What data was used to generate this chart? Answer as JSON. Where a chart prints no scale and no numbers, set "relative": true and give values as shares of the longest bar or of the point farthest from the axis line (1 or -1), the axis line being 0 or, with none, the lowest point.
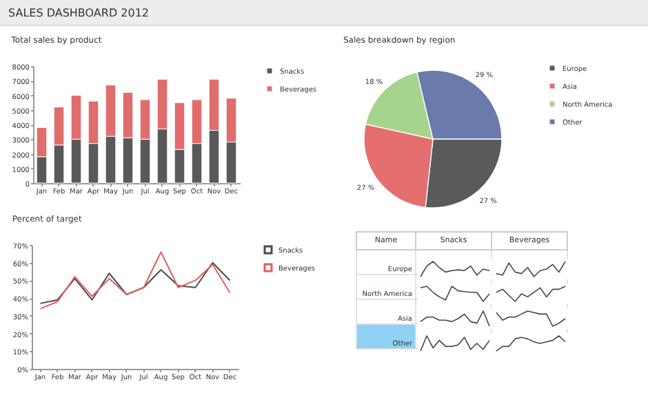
{
  "chart_data": [
    {
      "type": "other",
      "title": "SALES DASHBOARD 2012"
    },
    {
      "type": "bar",
      "title": "Total sales by product",
      "stacked": true,
      "categories": [
        "Jan",
        "Feb",
        "Mar",
        "Apr",
        "May",
        "Jun",
        "Jul",
        "Aug",
        "Sep",
        "Oct",
        "Nov",
        "Dec"
      ],
      "series": [
        {
          "name": "Snacks",
          "color": "#595959",
          "values": [
            1800,
            2600,
            3000,
            2700,
            3200,
            3100,
            3000,
            3700,
            2300,
            2700,
            3600,
            2800
          ]
        },
        {
          "name": "Beverages",
          "color": "#e06c6c",
          "values": [
            2000,
            2600,
            3000,
            2900,
            3500,
            3100,
            2700,
            3400,
            3200,
            3000,
            3500,
            3000
          ]
        }
      ],
      "ylim": [
        0,
        8000
      ],
      "yticks": [
        0,
        1000,
        2000,
        3000,
        4000,
        5000,
        6000,
        7000,
        8000
      ],
      "grid": false,
      "legend": "right"
    },
    {
      "type": "pie",
      "title": "Sales breakdown by region",
      "categories": [
        "Europe",
        "Asia",
        "North America",
        "Other"
      ],
      "values": [
        27,
        27,
        18,
        29
      ],
      "colors": [
        "#5a5a5a",
        "#e56e6e",
        "#a6d48c",
        "#6b7aac"
      ],
      "value_labels": [
        "27 %",
        "27 %",
        "18 %",
        "29 %"
      ],
      "legend": "right"
    },
    {
      "type": "line",
      "title": "Percent of target",
      "categories": [
        "Jan",
        "Feb",
        "Mar",
        "Apr",
        "May",
        "Jun",
        "Jul",
        "Aug",
        "Sep",
        "Oct",
        "Nov",
        "Dec"
      ],
      "series": [
        {
          "name": "Snacks",
          "color": "#4a4a4a",
          "values": [
            37,
            39,
            51,
            39,
            54,
            42,
            46,
            56,
            47,
            46,
            60,
            50
          ]
        },
        {
          "name": "Beverages",
          "color": "#e85c5c",
          "values": [
            34,
            38,
            52,
            41,
            51,
            42,
            46,
            66,
            46,
            50,
            59,
            43
          ]
        }
      ],
      "ylim": [
        0,
        70
      ],
      "yticks": [
        {
          "value": 0,
          "label": "0%"
        },
        {
          "value": 10,
          "label": "10%"
        },
        {
          "value": 20,
          "label": "20%"
        },
        {
          "value": 30,
          "label": "30%"
        },
        {
          "value": 40,
          "label": "40%"
        },
        {
          "value": 50,
          "label": "50%"
        },
        {
          "value": 60,
          "label": "60%"
        },
        {
          "value": 70,
          "label": "70%"
        }
      ],
      "grid": false,
      "legend": "right",
      "marker": "none"
    },
    {
      "type": "other",
      "annotations": [
        "Name",
        "Snacks",
        "Beverages",
        "Europe",
        "North America",
        "Asia",
        "Other"
      ]
    },
    {
      "type": "line",
      "relative": true,
      "categories": [
        null,
        null,
        null,
        null,
        null,
        null,
        null,
        null,
        null,
        null,
        null,
        null
      ],
      "color": "#444444",
      "values": [
        0,
        0.7,
        1,
        0.6,
        0.3,
        0.4,
        0.45,
        0.4,
        0.7,
        0.1,
        0.5,
        0.4
      ]
    },
    {
      "type": "line",
      "relative": true,
      "categories": [
        null,
        null,
        null,
        null,
        null,
        null,
        null,
        null,
        null,
        null,
        null,
        null
      ],
      "color": "#444444",
      "values": [
        0.2,
        0.1,
        0.9,
        0.3,
        0.2,
        0.6,
        0,
        0.4,
        0.5,
        0.8,
        0.3,
        1
      ]
    },
    {
      "type": "line",
      "relative": true,
      "categories": [
        null,
        null,
        null,
        null,
        null,
        null,
        null,
        null,
        null,
        null,
        null,
        null
      ],
      "color": "#444444",
      "values": [
        0.9,
        1,
        0.6,
        0.3,
        0.1,
        1,
        0.7,
        0.65,
        0.6,
        0.6,
        0,
        0.5
      ]
    },
    {
      "type": "line",
      "relative": true,
      "categories": [
        null,
        null,
        null,
        null,
        null,
        null,
        null,
        null,
        null,
        null,
        null,
        null
      ],
      "color": "#444444",
      "values": [
        0.6,
        0.8,
        0.4,
        0,
        0.5,
        0.3,
        0.6,
        0.9,
        0.3,
        0.8,
        0.8,
        1
      ]
    },
    {
      "type": "line",
      "relative": true,
      "categories": [
        null,
        null,
        null,
        null,
        null,
        null,
        null,
        null,
        null,
        null,
        null,
        null
      ],
      "color": "#444444",
      "values": [
        0.3,
        0.6,
        0.6,
        0.4,
        0.4,
        0.3,
        0.5,
        0.8,
        0.3,
        0.2,
        1,
        0
      ]
    },
    {
      "type": "line",
      "relative": true,
      "categories": [
        null,
        null,
        null,
        null,
        null,
        null,
        null,
        null,
        null,
        null,
        null,
        null
      ],
      "color": "#444444",
      "values": [
        0.9,
        0.4,
        0.6,
        0.6,
        0.8,
        1,
        0.9,
        0.8,
        0.8,
        0,
        0.2,
        0.5
      ]
    },
    {
      "type": "line",
      "relative": true,
      "categories": [
        null,
        null,
        null,
        null,
        null,
        null,
        null,
        null,
        null,
        null,
        null,
        null
      ],
      "color": "#444444",
      "values": [
        0,
        1,
        0.2,
        0.7,
        0.3,
        0.3,
        0.4,
        0.9,
        0.1,
        0.5,
        0.1,
        0.7
      ]
    },
    {
      "type": "line",
      "relative": true,
      "categories": [
        null,
        null,
        null,
        null,
        null,
        null,
        null,
        null,
        null,
        null,
        null,
        null
      ],
      "color": "#444444",
      "values": [
        0,
        0.3,
        0.3,
        0.8,
        0.9,
        0.8,
        0.6,
        0.5,
        0.6,
        0.7,
        1,
        0.6
      ]
    }
  ]
}
